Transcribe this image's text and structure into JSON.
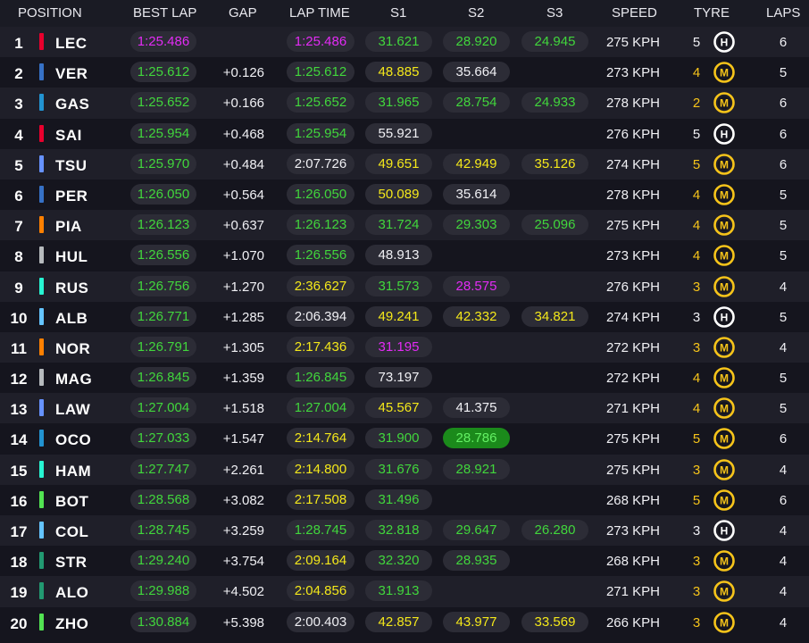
{
  "header": {
    "position": "POSITION",
    "best_lap": "BEST LAP",
    "gap": "GAP",
    "lap_time": "LAP TIME",
    "s1": "S1",
    "s2": "S2",
    "s3": "S3",
    "speed": "SPEED",
    "tyre": "TYRE",
    "laps": "LAPS"
  },
  "colors": {
    "purple": "#e32bf5",
    "green": "#41d63c",
    "yellow": "#f4e81a",
    "hard": "#ffffff",
    "medium": "#f6c41a"
  },
  "rows": [
    {
      "pos": "1",
      "team": "#e8002d",
      "driver": "LEC",
      "best": "1:25.486",
      "best_c": "purple",
      "gap": "",
      "lap": "1:25.486",
      "lap_c": "purple",
      "s1": "31.621",
      "s1_c": "green",
      "s2": "28.920",
      "s2_c": "green",
      "s3": "24.945",
      "s3_c": "green",
      "speed": "275 KPH",
      "tyre_age": "5",
      "tyre": "hard-icon",
      "tyre_letter": "H",
      "laps": "6"
    },
    {
      "pos": "2",
      "team": "#3671c6",
      "driver": "VER",
      "best": "1:25.612",
      "best_c": "green",
      "gap": "+0.126",
      "lap": "1:25.612",
      "lap_c": "green",
      "s1": "48.885",
      "s1_c": "yellow",
      "s2": "35.664",
      "s2_c": "white",
      "s3": "",
      "s3_c": "white",
      "speed": "273 KPH",
      "tyre_age": "4",
      "tyre": "medium-icon",
      "tyre_letter": "M",
      "laps": "5"
    },
    {
      "pos": "3",
      "team": "#2293d1",
      "driver": "GAS",
      "best": "1:25.652",
      "best_c": "green",
      "gap": "+0.166",
      "lap": "1:25.652",
      "lap_c": "green",
      "s1": "31.965",
      "s1_c": "green",
      "s2": "28.754",
      "s2_c": "green",
      "s3": "24.933",
      "s3_c": "green",
      "speed": "278 KPH",
      "tyre_age": "2",
      "tyre": "medium-new-icon",
      "tyre_letter": "M",
      "laps": "6"
    },
    {
      "pos": "4",
      "team": "#e8002d",
      "driver": "SAI",
      "best": "1:25.954",
      "best_c": "green",
      "gap": "+0.468",
      "lap": "1:25.954",
      "lap_c": "green",
      "s1": "55.921",
      "s1_c": "white",
      "s2": "",
      "s2_c": "white",
      "s3": "",
      "s3_c": "white",
      "speed": "276 KPH",
      "tyre_age": "5",
      "tyre": "hard-icon",
      "tyre_letter": "H",
      "laps": "6"
    },
    {
      "pos": "5",
      "team": "#6692ff",
      "driver": "TSU",
      "best": "1:25.970",
      "best_c": "green",
      "gap": "+0.484",
      "lap": "2:07.726",
      "lap_c": "white",
      "s1": "49.651",
      "s1_c": "yellow",
      "s2": "42.949",
      "s2_c": "yellow",
      "s3": "35.126",
      "s3_c": "yellow",
      "speed": "274 KPH",
      "tyre_age": "5",
      "tyre": "medium-icon",
      "tyre_letter": "M",
      "laps": "6"
    },
    {
      "pos": "6",
      "team": "#3671c6",
      "driver": "PER",
      "best": "1:26.050",
      "best_c": "green",
      "gap": "+0.564",
      "lap": "1:26.050",
      "lap_c": "green",
      "s1": "50.089",
      "s1_c": "yellow",
      "s2": "35.614",
      "s2_c": "white",
      "s3": "",
      "s3_c": "white",
      "speed": "278 KPH",
      "tyre_age": "4",
      "tyre": "medium-icon",
      "tyre_letter": "M",
      "laps": "5"
    },
    {
      "pos": "7",
      "team": "#ff8000",
      "driver": "PIA",
      "best": "1:26.123",
      "best_c": "green",
      "gap": "+0.637",
      "lap": "1:26.123",
      "lap_c": "green",
      "s1": "31.724",
      "s1_c": "green",
      "s2": "29.303",
      "s2_c": "green",
      "s3": "25.096",
      "s3_c": "green",
      "speed": "275 KPH",
      "tyre_age": "4",
      "tyre": "medium-icon",
      "tyre_letter": "M",
      "laps": "5"
    },
    {
      "pos": "8",
      "team": "#b6babd",
      "driver": "HUL",
      "best": "1:26.556",
      "best_c": "green",
      "gap": "+1.070",
      "lap": "1:26.556",
      "lap_c": "green",
      "s1": "48.913",
      "s1_c": "white",
      "s2": "",
      "s2_c": "white",
      "s3": "",
      "s3_c": "white",
      "speed": "273 KPH",
      "tyre_age": "4",
      "tyre": "medium-icon",
      "tyre_letter": "M",
      "laps": "5"
    },
    {
      "pos": "9",
      "team": "#27f4d2",
      "driver": "RUS",
      "best": "1:26.756",
      "best_c": "green",
      "gap": "+1.270",
      "lap": "2:36.627",
      "lap_c": "yellow",
      "s1": "31.573",
      "s1_c": "green",
      "s2": "28.575",
      "s2_c": "purple",
      "s3": "",
      "s3_c": "white",
      "speed": "276 KPH",
      "tyre_age": "3",
      "tyre": "medium-icon",
      "tyre_letter": "M",
      "laps": "4"
    },
    {
      "pos": "10",
      "team": "#64c4ff",
      "driver": "ALB",
      "best": "1:26.771",
      "best_c": "green",
      "gap": "+1.285",
      "lap": "2:06.394",
      "lap_c": "white",
      "s1": "49.241",
      "s1_c": "yellow",
      "s2": "42.332",
      "s2_c": "yellow",
      "s3": "34.821",
      "s3_c": "yellow",
      "speed": "274 KPH",
      "tyre_age": "3",
      "tyre": "hard-icon",
      "tyre_letter": "H",
      "laps": "5"
    },
    {
      "pos": "11",
      "team": "#ff8000",
      "driver": "NOR",
      "best": "1:26.791",
      "best_c": "green",
      "gap": "+1.305",
      "lap": "2:17.436",
      "lap_c": "yellow",
      "s1": "31.195",
      "s1_c": "purple",
      "s2": "",
      "s2_c": "white",
      "s3": "",
      "s3_c": "white",
      "speed": "272 KPH",
      "tyre_age": "3",
      "tyre": "medium-icon",
      "tyre_letter": "M",
      "laps": "4"
    },
    {
      "pos": "12",
      "team": "#b6babd",
      "driver": "MAG",
      "best": "1:26.845",
      "best_c": "green",
      "gap": "+1.359",
      "lap": "1:26.845",
      "lap_c": "green",
      "s1": "73.197",
      "s1_c": "white",
      "s2": "",
      "s2_c": "white",
      "s3": "",
      "s3_c": "white",
      "speed": "272 KPH",
      "tyre_age": "4",
      "tyre": "medium-icon",
      "tyre_letter": "M",
      "laps": "5"
    },
    {
      "pos": "13",
      "team": "#6692ff",
      "driver": "LAW",
      "best": "1:27.004",
      "best_c": "green",
      "gap": "+1.518",
      "lap": "1:27.004",
      "lap_c": "green",
      "s1": "45.567",
      "s1_c": "yellow",
      "s2": "41.375",
      "s2_c": "white",
      "s3": "",
      "s3_c": "white",
      "speed": "271 KPH",
      "tyre_age": "4",
      "tyre": "medium-icon",
      "tyre_letter": "M",
      "laps": "5"
    },
    {
      "pos": "14",
      "team": "#2293d1",
      "driver": "OCO",
      "best": "1:27.033",
      "best_c": "green",
      "gap": "+1.547",
      "lap": "2:14.764",
      "lap_c": "yellow",
      "s1": "31.900",
      "s1_c": "green",
      "s2": "28.786",
      "s2_c": "pb",
      "s3": "",
      "s3_c": "white",
      "speed": "275 KPH",
      "tyre_age": "5",
      "tyre": "medium-icon",
      "tyre_letter": "M",
      "laps": "6"
    },
    {
      "pos": "15",
      "team": "#27f4d2",
      "driver": "HAM",
      "best": "1:27.747",
      "best_c": "green",
      "gap": "+2.261",
      "lap": "2:14.800",
      "lap_c": "yellow",
      "s1": "31.676",
      "s1_c": "green",
      "s2": "28.921",
      "s2_c": "green",
      "s3": "",
      "s3_c": "white",
      "speed": "275 KPH",
      "tyre_age": "3",
      "tyre": "medium-icon",
      "tyre_letter": "M",
      "laps": "4"
    },
    {
      "pos": "16",
      "team": "#52e252",
      "driver": "BOT",
      "best": "1:28.568",
      "best_c": "green",
      "gap": "+3.082",
      "lap": "2:17.508",
      "lap_c": "yellow",
      "s1": "31.496",
      "s1_c": "green",
      "s2": "",
      "s2_c": "white",
      "s3": "",
      "s3_c": "white",
      "speed": "268 KPH",
      "tyre_age": "5",
      "tyre": "medium-icon",
      "tyre_letter": "M",
      "laps": "6"
    },
    {
      "pos": "17",
      "team": "#64c4ff",
      "driver": "COL",
      "best": "1:28.745",
      "best_c": "green",
      "gap": "+3.259",
      "lap": "1:28.745",
      "lap_c": "green",
      "s1": "32.818",
      "s1_c": "green",
      "s2": "29.647",
      "s2_c": "green",
      "s3": "26.280",
      "s3_c": "green",
      "speed": "273 KPH",
      "tyre_age": "3",
      "tyre": "hard-icon",
      "tyre_letter": "H",
      "laps": "4"
    },
    {
      "pos": "18",
      "team": "#229971",
      "driver": "STR",
      "best": "1:29.240",
      "best_c": "green",
      "gap": "+3.754",
      "lap": "2:09.164",
      "lap_c": "yellow",
      "s1": "32.320",
      "s1_c": "green",
      "s2": "28.935",
      "s2_c": "green",
      "s3": "",
      "s3_c": "white",
      "speed": "268 KPH",
      "tyre_age": "3",
      "tyre": "medium-icon",
      "tyre_letter": "M",
      "laps": "4"
    },
    {
      "pos": "19",
      "team": "#229971",
      "driver": "ALO",
      "best": "1:29.988",
      "best_c": "green",
      "gap": "+4.502",
      "lap": "2:04.856",
      "lap_c": "yellow",
      "s1": "31.913",
      "s1_c": "green",
      "s2": "",
      "s2_c": "white",
      "s3": "",
      "s3_c": "white",
      "speed": "271 KPH",
      "tyre_age": "3",
      "tyre": "medium-icon",
      "tyre_letter": "M",
      "laps": "4"
    },
    {
      "pos": "20",
      "team": "#52e252",
      "driver": "ZHO",
      "best": "1:30.884",
      "best_c": "green",
      "gap": "+5.398",
      "lap": "2:00.403",
      "lap_c": "white",
      "s1": "42.857",
      "s1_c": "yellow",
      "s2": "43.977",
      "s2_c": "yellow",
      "s3": "33.569",
      "s3_c": "yellow",
      "speed": "266 KPH",
      "tyre_age": "3",
      "tyre": "medium-icon",
      "tyre_letter": "M",
      "laps": "4"
    }
  ]
}
